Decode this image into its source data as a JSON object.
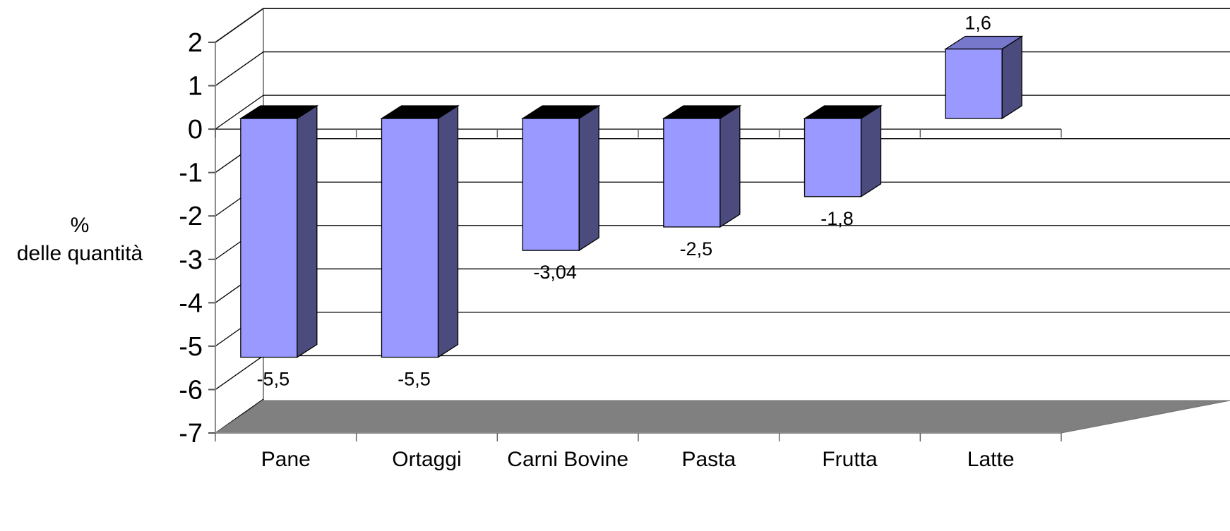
{
  "chart_data": {
    "type": "bar",
    "title": "",
    "xlabel": "",
    "ylabel_lines": [
      "%",
      "delle quantità"
    ],
    "categories": [
      "Pane",
      "Ortaggi",
      "Carni Bovine",
      "Pasta",
      "Frutta",
      "Latte"
    ],
    "values": [
      -5.5,
      -5.5,
      -3.04,
      -2.5,
      -1.8,
      1.6
    ],
    "data_labels": [
      "-5,5",
      "-5,5",
      "-3,04",
      "-2,5",
      "-1,8",
      "1,6"
    ],
    "ylim": [
      -7,
      2
    ],
    "yticks": [
      2,
      1,
      0,
      -1,
      -2,
      -3,
      -4,
      -5,
      -6,
      -7
    ],
    "ytick_labels": [
      "2",
      "1",
      "0",
      "-1",
      "-2",
      "-3",
      "-4",
      "-5",
      "-6",
      "-7"
    ],
    "grid": true,
    "legend": "none",
    "style": "3d-column",
    "colors": {
      "bar_front": "#9999ff",
      "bar_side": "#4b4b7d",
      "bar_top_negative": "#000000",
      "bar_top_positive": "#7777cc",
      "floor": "#808080",
      "gridline": "#000000"
    }
  }
}
